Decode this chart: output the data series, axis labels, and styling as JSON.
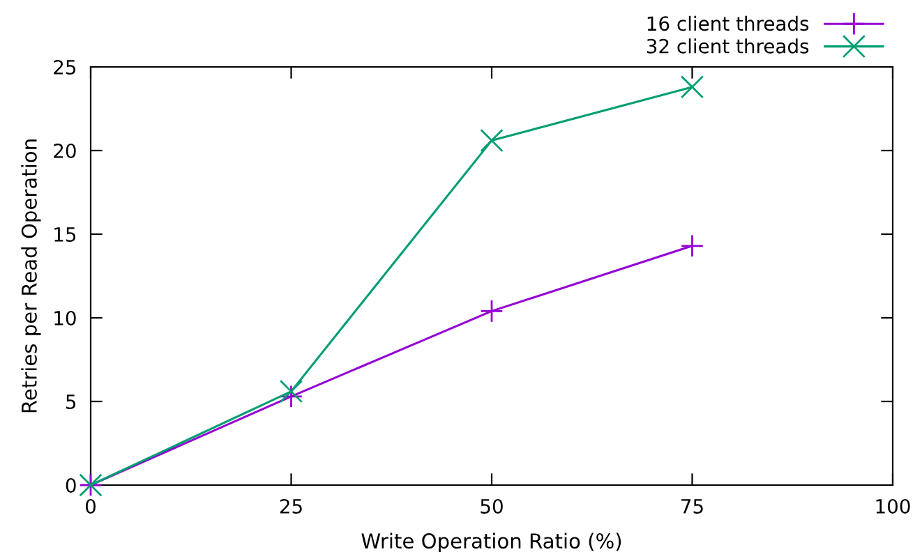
{
  "chart_data": {
    "type": "line",
    "xlabel": "Write Operation Ratio (%)",
    "ylabel": "Retries per Read Operation",
    "x": [
      0,
      25,
      50,
      75
    ],
    "series": [
      {
        "name": "16 client threads",
        "color": "#9400d3",
        "marker": "cross",
        "values": [
          0,
          5.3,
          10.4,
          14.3
        ]
      },
      {
        "name": "32 client threads",
        "color": "#009e73",
        "marker": "x",
        "values": [
          0,
          5.6,
          20.6,
          23.8
        ]
      }
    ],
    "xlim": [
      0,
      100
    ],
    "xticks": [
      0,
      25,
      50,
      75,
      100
    ],
    "ylim": [
      0,
      25
    ],
    "yticks": [
      0,
      5,
      10,
      15,
      20,
      25
    ],
    "grid": false,
    "legend": "top right",
    "line_style": "solid"
  }
}
